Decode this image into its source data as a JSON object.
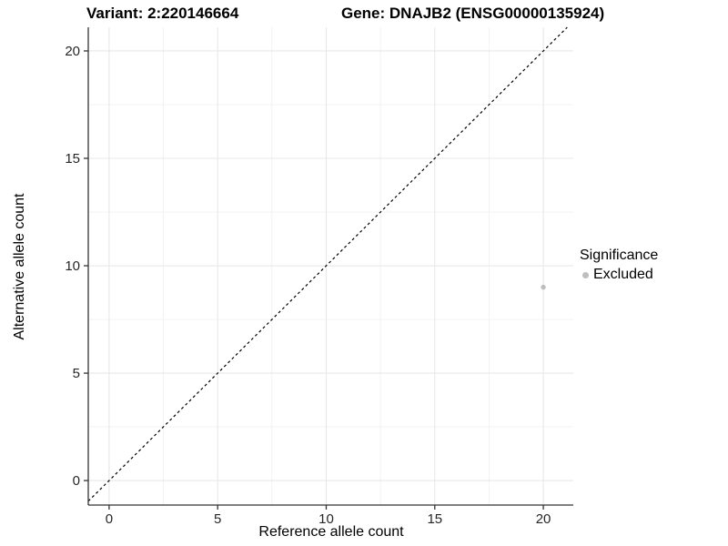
{
  "chart_data": {
    "type": "scatter",
    "title_left": "Variant: 2:220146664",
    "title_right": "Gene: DNAJB2 (ENSG00000135924)",
    "xlabel": "Reference allele count",
    "ylabel": "Alternative allele count",
    "xlim": [
      -0.96,
      21.38
    ],
    "ylim": [
      -1.14,
      21.1
    ],
    "x_ticks": [
      0,
      5,
      10,
      15,
      20
    ],
    "y_ticks": [
      0,
      5,
      10,
      15,
      20
    ],
    "x_minor_ticks": [
      2.5,
      7.5,
      12.5,
      17.5
    ],
    "y_minor_ticks": [
      2.5,
      7.5,
      12.5,
      17.5
    ],
    "grid": true,
    "reference_line": {
      "kind": "identity",
      "style": "dashed",
      "color": "#000000"
    },
    "series": [
      {
        "name": "Excluded",
        "color": "#bebebe",
        "points": [
          {
            "x": 20,
            "y": 9
          }
        ]
      }
    ],
    "legend": {
      "title": "Significance",
      "position": "right",
      "entries": [
        {
          "label": "Excluded",
          "color": "#bebebe"
        }
      ]
    }
  },
  "colors": {
    "axis_line": "#333333",
    "major_grid": "#e8e8e8",
    "minor_grid": "#f1f1f1",
    "tick_label": "#262626",
    "background": "#ffffff"
  }
}
